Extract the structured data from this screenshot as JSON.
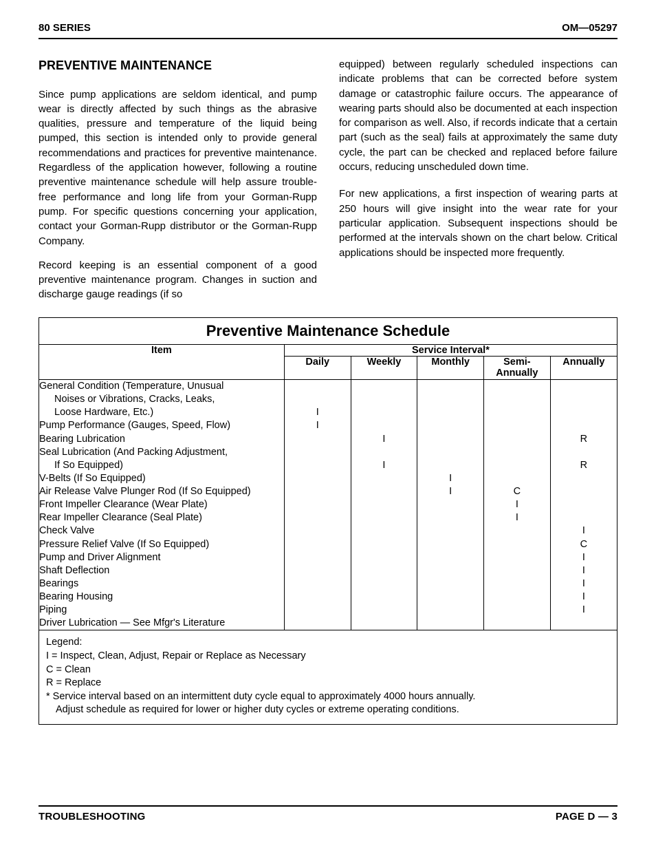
{
  "header": {
    "left": "80 SERIES",
    "right": "OM—05297"
  },
  "section_heading": "PREVENTIVE MAINTENANCE",
  "paragraphs": {
    "p1": "Since pump applications are seldom identical, and pump wear is directly affected by such things as the abrasive qualities, pressure and temperature of the liquid being pumped, this section is intended only to provide general recommendations and practices for preventive maintenance. Regardless of the application however, following a routine preventive maintenance schedule will help assure trouble-free performance and long life from your Gorman-Rupp pump. For specific questions concerning your application, contact your Gorman-Rupp distributor or the Gorman-Rupp Company.",
    "p2": "Record keeping is an essential component of a good preventive maintenance program. Changes in suction and discharge gauge readings (if so",
    "p3": "equipped) between regularly scheduled inspections can indicate problems that can be corrected before system damage or catastrophic failure occurs. The appearance of wearing parts should also be documented at each inspection for comparison as well. Also, if records indicate that a certain part (such as the seal) fails at approximately the same duty cycle, the part can be checked and replaced before failure occurs, reducing unscheduled down time.",
    "p4": "For new applications, a first inspection of wearing parts at 250 hours will give insight into the wear rate for your particular application. Subsequent inspections should be performed at the intervals shown on the chart below. Critical applications should be inspected more frequently."
  },
  "schedule": {
    "title": "Preventive Maintenance Schedule",
    "item_header": "Item",
    "service_header": "Service Interval*",
    "interval_labels": [
      "Daily",
      "Weekly",
      "Monthly",
      "Semi-\nAnnually",
      "Annually"
    ],
    "rows": [
      {
        "lines": [
          "General Condition (Temperature, Unusual",
          "Noises or Vibrations, Cracks, Leaks,",
          "Loose Hardware, Etc.)"
        ],
        "cont": [
          false,
          true,
          true
        ],
        "marks": {
          "daily": "I",
          "weekly": "",
          "monthly": "",
          "semi": "",
          "annually": ""
        },
        "mark_at": 2
      },
      {
        "lines": [
          "Pump Performance (Gauges, Speed, Flow)"
        ],
        "cont": [
          false
        ],
        "marks": {
          "daily": "I",
          "weekly": "",
          "monthly": "",
          "semi": "",
          "annually": ""
        },
        "mark_at": 0
      },
      {
        "lines": [
          "Bearing Lubrication"
        ],
        "cont": [
          false
        ],
        "marks": {
          "daily": "",
          "weekly": "I",
          "monthly": "",
          "semi": "",
          "annually": "R"
        },
        "mark_at": 0
      },
      {
        "lines": [
          "Seal Lubrication (And Packing Adjustment,",
          "If So Equipped)"
        ],
        "cont": [
          false,
          true
        ],
        "marks": {
          "daily": "",
          "weekly": "I",
          "monthly": "",
          "semi": "",
          "annually": "R"
        },
        "mark_at": 1
      },
      {
        "lines": [
          "V-Belts (If So Equipped)"
        ],
        "cont": [
          false
        ],
        "marks": {
          "daily": "",
          "weekly": "",
          "monthly": "I",
          "semi": "",
          "annually": ""
        },
        "mark_at": 0
      },
      {
        "lines": [
          "Air Release Valve Plunger Rod (If So Equipped)"
        ],
        "cont": [
          false
        ],
        "marks": {
          "daily": "",
          "weekly": "",
          "monthly": "I",
          "semi": "C",
          "annually": ""
        },
        "mark_at": 0
      },
      {
        "lines": [
          "Front Impeller Clearance (Wear Plate)"
        ],
        "cont": [
          false
        ],
        "marks": {
          "daily": "",
          "weekly": "",
          "monthly": "",
          "semi": "I",
          "annually": ""
        },
        "mark_at": 0
      },
      {
        "lines": [
          "Rear Impeller Clearance (Seal Plate)"
        ],
        "cont": [
          false
        ],
        "marks": {
          "daily": "",
          "weekly": "",
          "monthly": "",
          "semi": "I",
          "annually": ""
        },
        "mark_at": 0
      },
      {
        "lines": [
          "Check Valve"
        ],
        "cont": [
          false
        ],
        "marks": {
          "daily": "",
          "weekly": "",
          "monthly": "",
          "semi": "",
          "annually": "I"
        },
        "mark_at": 0
      },
      {
        "lines": [
          "Pressure Relief Valve (If So Equipped)"
        ],
        "cont": [
          false
        ],
        "marks": {
          "daily": "",
          "weekly": "",
          "monthly": "",
          "semi": "",
          "annually": "C"
        },
        "mark_at": 0
      },
      {
        "lines": [
          "Pump and Driver Alignment"
        ],
        "cont": [
          false
        ],
        "marks": {
          "daily": "",
          "weekly": "",
          "monthly": "",
          "semi": "",
          "annually": "I"
        },
        "mark_at": 0
      },
      {
        "lines": [
          "Shaft Deflection"
        ],
        "cont": [
          false
        ],
        "marks": {
          "daily": "",
          "weekly": "",
          "monthly": "",
          "semi": "",
          "annually": "I"
        },
        "mark_at": 0
      },
      {
        "lines": [
          "Bearings"
        ],
        "cont": [
          false
        ],
        "marks": {
          "daily": "",
          "weekly": "",
          "monthly": "",
          "semi": "",
          "annually": "I"
        },
        "mark_at": 0
      },
      {
        "lines": [
          "Bearing Housing"
        ],
        "cont": [
          false
        ],
        "marks": {
          "daily": "",
          "weekly": "",
          "monthly": "",
          "semi": "",
          "annually": "I"
        },
        "mark_at": 0
      },
      {
        "lines": [
          "Piping"
        ],
        "cont": [
          false
        ],
        "marks": {
          "daily": "",
          "weekly": "",
          "monthly": "",
          "semi": "",
          "annually": "I"
        },
        "mark_at": 0
      },
      {
        "lines": [
          "Driver Lubrication — See Mfgr's Literature"
        ],
        "cont": [
          false
        ],
        "marks": {
          "daily": "",
          "weekly": "",
          "monthly": "",
          "semi": "",
          "annually": ""
        },
        "mark_at": 0
      }
    ],
    "legend": {
      "title": "Legend:",
      "i": "I  =  Inspect, Clean, Adjust, Repair or Replace as Necessary",
      "c": "C =  Clean",
      "r": "R =  Replace",
      "note1": "*  Service interval based on an intermittent duty cycle equal to approximately 4000 hours annually.",
      "note2": "Adjust schedule as required for lower or higher duty cycles or extreme operating conditions."
    }
  },
  "footer": {
    "left": "TROUBLESHOOTING",
    "right": "PAGE D — 3"
  }
}
